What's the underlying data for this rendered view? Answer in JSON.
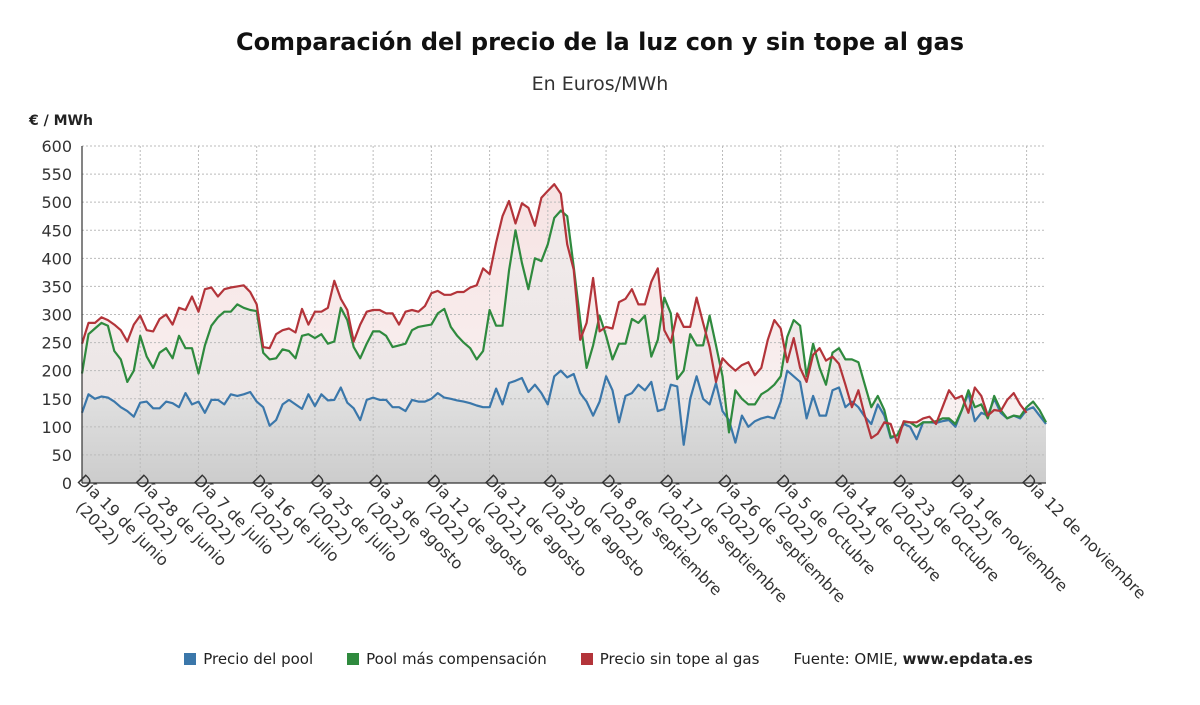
{
  "title": "Comparación del precio de la luz con y sin tope al gas",
  "subtitle": "En Euros/MWh",
  "y_unit_label": "€ / MWh",
  "source_label": "Fuente: OMIE, ",
  "source_site": "www.epdata.es",
  "colors": {
    "pool": "#3b77aa",
    "compensacion": "#2f8a3e",
    "sin_tope": "#b3343a",
    "grid": "#bbbbbb",
    "axis": "#333333"
  },
  "chart_data": {
    "type": "line",
    "title": "Comparación del precio de la luz con y sin tope al gas",
    "subtitle": "En Euros/MWh",
    "ylabel": "€ / MWh",
    "ylim": [
      0,
      600
    ],
    "yticks": [
      0,
      50,
      100,
      150,
      200,
      250,
      300,
      350,
      400,
      450,
      500,
      550,
      600
    ],
    "grid": true,
    "legend_position": "bottom",
    "x_tick_labels": [
      "Día 19 de junio (2022)",
      "Día 28 de junio (2022)",
      "Día 7 de julio (2022)",
      "Día 16 de julio (2022)",
      "Día 25 de julio (2022)",
      "Día 3 de agosto (2022)",
      "Día 12 de agosto (2022)",
      "Día 21 de agosto (2022)",
      "Día 30 de agosto (2022)",
      "Día 8 de septiembre (2022)",
      "Día 17 de septiembre (2022)",
      "Día 26 de septiembre (2022)",
      "Día 5 de octubre (2022)",
      "Día 14 de octubre (2022)",
      "Día 23 de octubre (2022)",
      "Día 1 de noviembre (2022)",
      "Día 12 de noviembre"
    ],
    "x_tick_index": [
      0,
      9,
      18,
      27,
      36,
      45,
      54,
      63,
      72,
      81,
      90,
      99,
      108,
      117,
      126,
      135,
      146
    ],
    "series": [
      {
        "name": "Precio del pool",
        "color": "#3b77aa",
        "values": [
          125,
          158,
          150,
          154,
          152,
          145,
          135,
          128,
          118,
          143,
          145,
          133,
          133,
          145,
          142,
          135,
          160,
          140,
          145,
          125,
          148,
          148,
          140,
          158,
          155,
          158,
          162,
          145,
          135,
          102,
          112,
          140,
          148,
          140,
          132,
          158,
          137,
          158,
          147,
          148,
          170,
          143,
          133,
          112,
          148,
          152,
          148,
          148,
          135,
          135,
          128,
          148,
          145,
          145,
          150,
          160,
          152,
          150,
          147,
          145,
          142,
          138,
          135,
          135,
          168,
          140,
          178,
          182,
          187,
          162,
          175,
          160,
          140,
          190,
          200,
          188,
          194,
          160,
          145,
          120,
          145,
          190,
          165,
          108,
          155,
          160,
          175,
          165,
          180,
          128,
          132,
          175,
          172,
          68,
          150,
          190,
          150,
          140,
          178,
          128,
          112,
          72,
          120,
          100,
          110,
          115,
          118,
          115,
          145,
          200,
          190,
          180,
          115,
          155,
          120,
          120,
          165,
          170,
          135,
          145,
          135,
          118,
          105,
          140,
          120,
          80,
          85,
          105,
          100,
          78,
          108,
          108,
          107,
          110,
          112,
          100,
          130,
          160,
          110,
          125,
          120,
          150,
          125,
          115,
          120,
          115,
          130,
          135,
          120,
          105
        ]
      },
      {
        "name": "Pool más compensación",
        "color": "#2f8a3e",
        "values": [
          195,
          265,
          275,
          285,
          280,
          235,
          220,
          180,
          200,
          262,
          225,
          205,
          232,
          240,
          222,
          262,
          240,
          240,
          195,
          245,
          280,
          295,
          305,
          305,
          318,
          312,
          308,
          306,
          232,
          220,
          222,
          238,
          235,
          222,
          262,
          265,
          258,
          265,
          248,
          252,
          312,
          290,
          242,
          222,
          248,
          270,
          270,
          262,
          242,
          245,
          248,
          272,
          278,
          280,
          282,
          302,
          310,
          278,
          262,
          250,
          240,
          220,
          235,
          308,
          280,
          280,
          378,
          450,
          392,
          345,
          400,
          395,
          425,
          472,
          485,
          475,
          385,
          290,
          205,
          245,
          298,
          262,
          220,
          248,
          248,
          292,
          285,
          298,
          225,
          255,
          330,
          302,
          185,
          200,
          265,
          245,
          245,
          298,
          245,
          190,
          90,
          165,
          150,
          140,
          140,
          158,
          165,
          175,
          190,
          260,
          290,
          280,
          190,
          248,
          205,
          175,
          232,
          240,
          220,
          220,
          215,
          175,
          135,
          155,
          130,
          82,
          85,
          108,
          108,
          100,
          108,
          108,
          110,
          115,
          115,
          105,
          130,
          165,
          135,
          140,
          115,
          155,
          130,
          115,
          120,
          118,
          135,
          145,
          130,
          108
        ]
      },
      {
        "name": "Precio sin tope al gas",
        "color": "#b3343a",
        "values": [
          248,
          285,
          285,
          295,
          290,
          282,
          272,
          252,
          282,
          298,
          272,
          270,
          292,
          300,
          282,
          312,
          308,
          332,
          305,
          345,
          348,
          332,
          345,
          348,
          350,
          352,
          340,
          318,
          242,
          240,
          265,
          272,
          275,
          268,
          310,
          282,
          305,
          305,
          312,
          360,
          328,
          308,
          252,
          282,
          305,
          308,
          308,
          302,
          302,
          282,
          305,
          308,
          305,
          315,
          338,
          342,
          335,
          335,
          340,
          340,
          348,
          352,
          382,
          372,
          428,
          475,
          502,
          462,
          498,
          490,
          458,
          508,
          520,
          532,
          515,
          425,
          380,
          255,
          285,
          365,
          270,
          278,
          275,
          322,
          328,
          345,
          318,
          318,
          358,
          382,
          272,
          250,
          302,
          278,
          278,
          330,
          285,
          242,
          180,
          222,
          210,
          200,
          210,
          215,
          192,
          205,
          255,
          290,
          275,
          215,
          258,
          205,
          180,
          228,
          240,
          218,
          225,
          212,
          175,
          135,
          165,
          120,
          80,
          88,
          108,
          105,
          72,
          110,
          108,
          108,
          115,
          118,
          105,
          135,
          165,
          150,
          155,
          125,
          170,
          155,
          120,
          130,
          128,
          148,
          160,
          140,
          125
        ]
      }
    ]
  }
}
